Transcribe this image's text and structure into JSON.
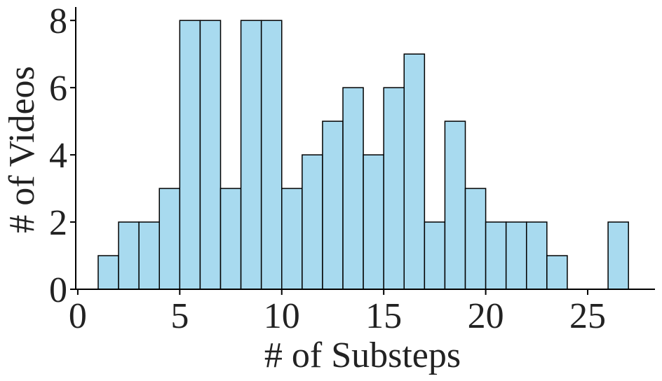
{
  "chart_data": {
    "type": "bar",
    "title": "",
    "xlabel": "# of Substeps",
    "ylabel": "# of Videos",
    "bin_width": 1,
    "bins": [
      {
        "x0": 1,
        "x1": 2,
        "count": 1
      },
      {
        "x0": 2,
        "x1": 3,
        "count": 2
      },
      {
        "x0": 3,
        "x1": 4,
        "count": 2
      },
      {
        "x0": 4,
        "x1": 5,
        "count": 3
      },
      {
        "x0": 5,
        "x1": 6,
        "count": 8
      },
      {
        "x0": 6,
        "x1": 7,
        "count": 8
      },
      {
        "x0": 7,
        "x1": 8,
        "count": 3
      },
      {
        "x0": 8,
        "x1": 9,
        "count": 8
      },
      {
        "x0": 9,
        "x1": 10,
        "count": 8
      },
      {
        "x0": 10,
        "x1": 11,
        "count": 3
      },
      {
        "x0": 11,
        "x1": 12,
        "count": 4
      },
      {
        "x0": 12,
        "x1": 13,
        "count": 5
      },
      {
        "x0": 13,
        "x1": 14,
        "count": 6
      },
      {
        "x0": 14,
        "x1": 15,
        "count": 4
      },
      {
        "x0": 15,
        "x1": 16,
        "count": 6
      },
      {
        "x0": 16,
        "x1": 17,
        "count": 7
      },
      {
        "x0": 17,
        "x1": 18,
        "count": 2
      },
      {
        "x0": 18,
        "x1": 19,
        "count": 5
      },
      {
        "x0": 19,
        "x1": 20,
        "count": 3
      },
      {
        "x0": 20,
        "x1": 21,
        "count": 2
      },
      {
        "x0": 21,
        "x1": 22,
        "count": 2
      },
      {
        "x0": 22,
        "x1": 23,
        "count": 2
      },
      {
        "x0": 23,
        "x1": 24,
        "count": 1
      },
      {
        "x0": 26,
        "x1": 27,
        "count": 2
      }
    ],
    "xlim": [
      -0.1,
      28.3
    ],
    "ylim": [
      0,
      8.4
    ],
    "xticks": [
      0,
      5,
      10,
      15,
      20,
      25
    ],
    "yticks": [
      0,
      2,
      4,
      6,
      8
    ],
    "grid": false,
    "colors": {
      "bar_fill": "#a8daef",
      "bar_edge": "#000000"
    }
  }
}
